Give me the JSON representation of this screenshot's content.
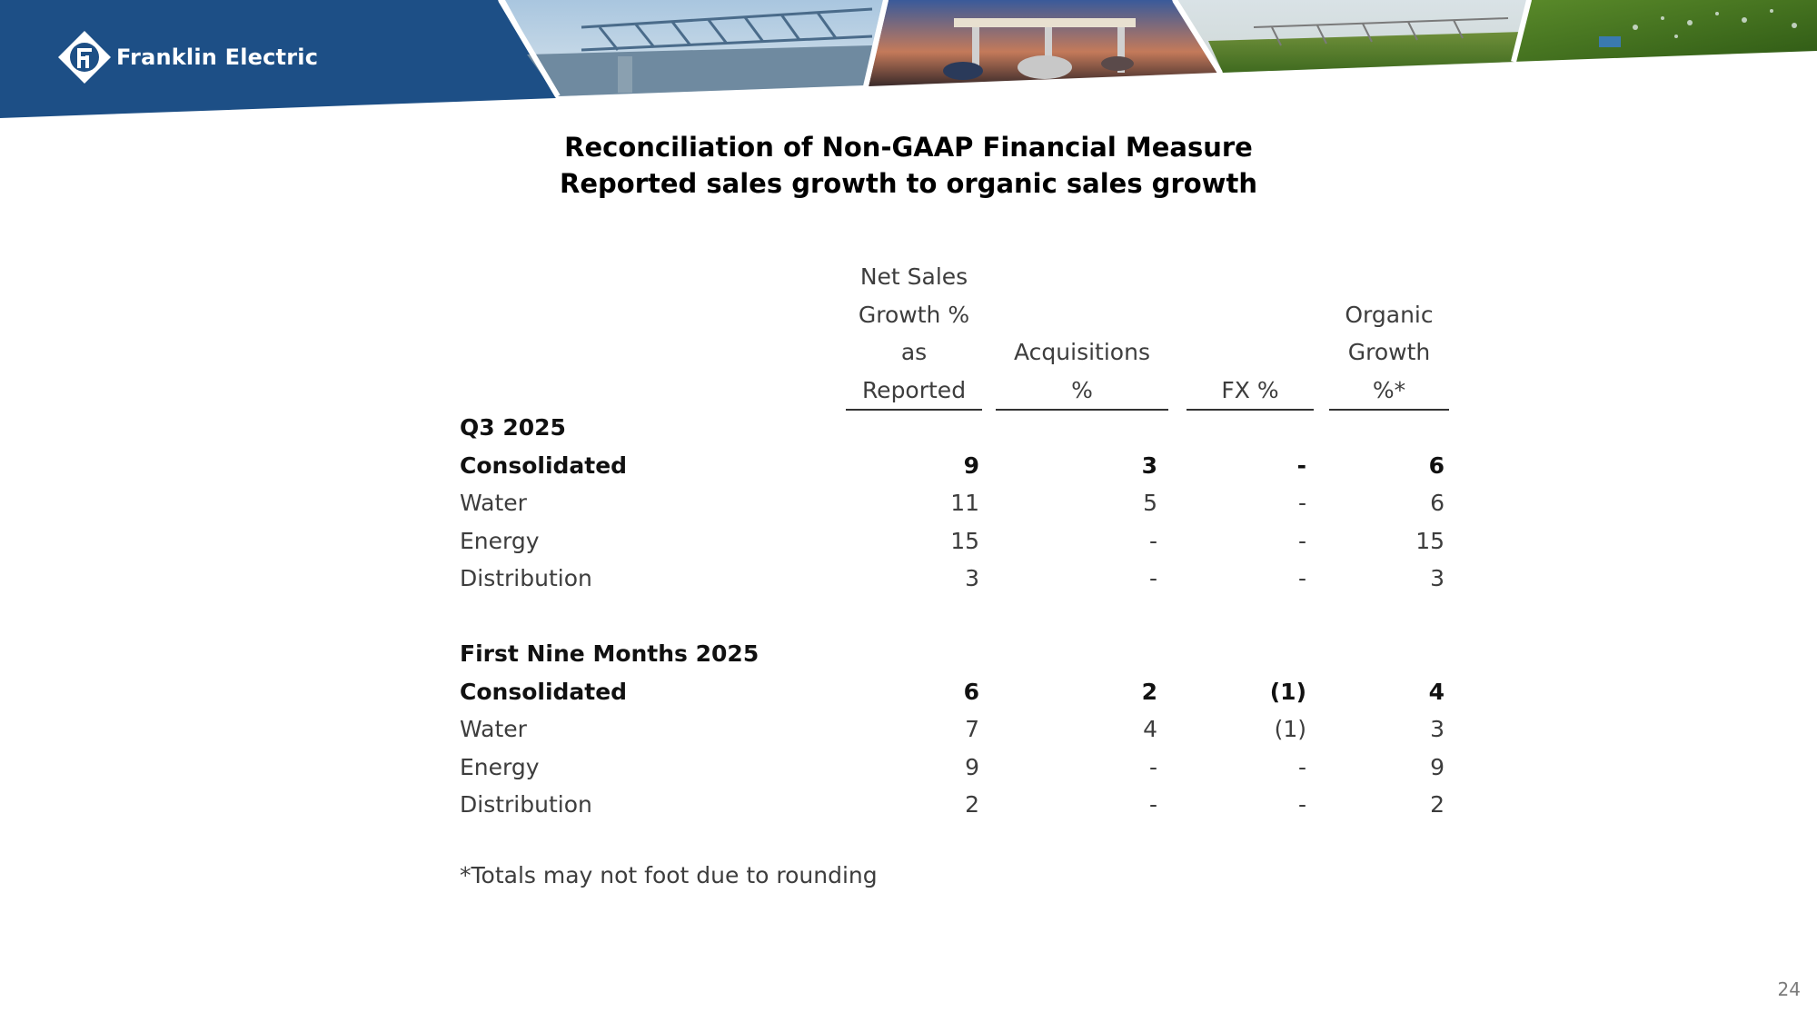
{
  "brand": {
    "name": "Franklin Electric",
    "primary_color": "#1d4f86"
  },
  "title": {
    "line1": "Reconciliation of Non-GAAP Financial Measure",
    "line2": "Reported sales growth to organic sales growth"
  },
  "table": {
    "columns": [
      [
        "Net Sales",
        "Growth %",
        "as",
        "Reported"
      ],
      [
        "Acquisitions",
        "%"
      ],
      [
        "FX %"
      ],
      [
        "Organic",
        "Growth",
        "%*"
      ]
    ],
    "sections": [
      {
        "label": "Q3 2025",
        "rows": [
          {
            "label": "Consolidated",
            "bold": true,
            "values": [
              "9",
              "3",
              "-",
              "6"
            ]
          },
          {
            "label": "Water",
            "bold": false,
            "values": [
              "11",
              "5",
              "-",
              "6"
            ]
          },
          {
            "label": "Energy",
            "bold": false,
            "values": [
              "15",
              "-",
              "-",
              "15"
            ]
          },
          {
            "label": "Distribution",
            "bold": false,
            "values": [
              "3",
              "-",
              "-",
              "3"
            ]
          }
        ]
      },
      {
        "label": "First Nine Months 2025",
        "rows": [
          {
            "label": "Consolidated",
            "bold": true,
            "values": [
              "6",
              "2",
              "(1)",
              "4"
            ]
          },
          {
            "label": "Water",
            "bold": false,
            "values": [
              "7",
              "4",
              "(1)",
              "3"
            ]
          },
          {
            "label": "Energy",
            "bold": false,
            "values": [
              "9",
              "-",
              "-",
              "9"
            ]
          },
          {
            "label": "Distribution",
            "bold": false,
            "values": [
              "2",
              "-",
              "-",
              "2"
            ]
          }
        ]
      }
    ]
  },
  "footnote": "*Totals may not foot due to rounding",
  "page_number": "24"
}
